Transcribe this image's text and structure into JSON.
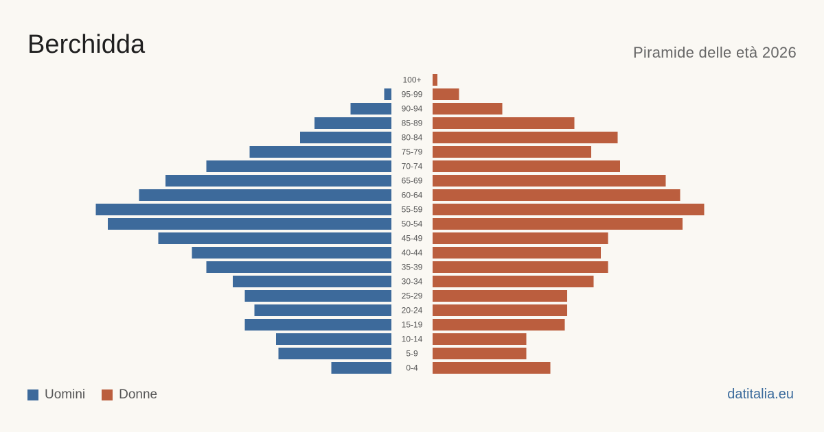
{
  "header": {
    "title": "Berchidda",
    "subtitle": "Piramide delle età 2026"
  },
  "legend": {
    "men_label": "Uomini",
    "women_label": "Donne"
  },
  "footer": {
    "source": "datitalia.eu"
  },
  "colors": {
    "men": "#3d6a9b",
    "women": "#bb5e3e"
  },
  "chart_data": {
    "type": "bar",
    "orientation": "horizontal",
    "subtype": "population-pyramid",
    "categories": [
      "100+",
      "95-99",
      "90-94",
      "85-89",
      "80-84",
      "75-79",
      "70-74",
      "65-69",
      "60-64",
      "55-59",
      "50-54",
      "45-49",
      "40-44",
      "35-39",
      "30-34",
      "25-29",
      "20-24",
      "15-19",
      "10-14",
      "5-9",
      "0-4"
    ],
    "series": [
      {
        "name": "Uomini",
        "side": "left",
        "values": [
          0,
          3,
          17,
          32,
          38,
          59,
          77,
          94,
          105,
          123,
          118,
          97,
          83,
          77,
          66,
          61,
          57,
          61,
          48,
          47,
          25
        ]
      },
      {
        "name": "Donne",
        "side": "right",
        "values": [
          2,
          11,
          29,
          59,
          77,
          66,
          78,
          97,
          103,
          113,
          104,
          73,
          70,
          73,
          67,
          56,
          56,
          55,
          39,
          39,
          49
        ]
      }
    ],
    "grid": false,
    "legend_position": "bottom-left"
  }
}
